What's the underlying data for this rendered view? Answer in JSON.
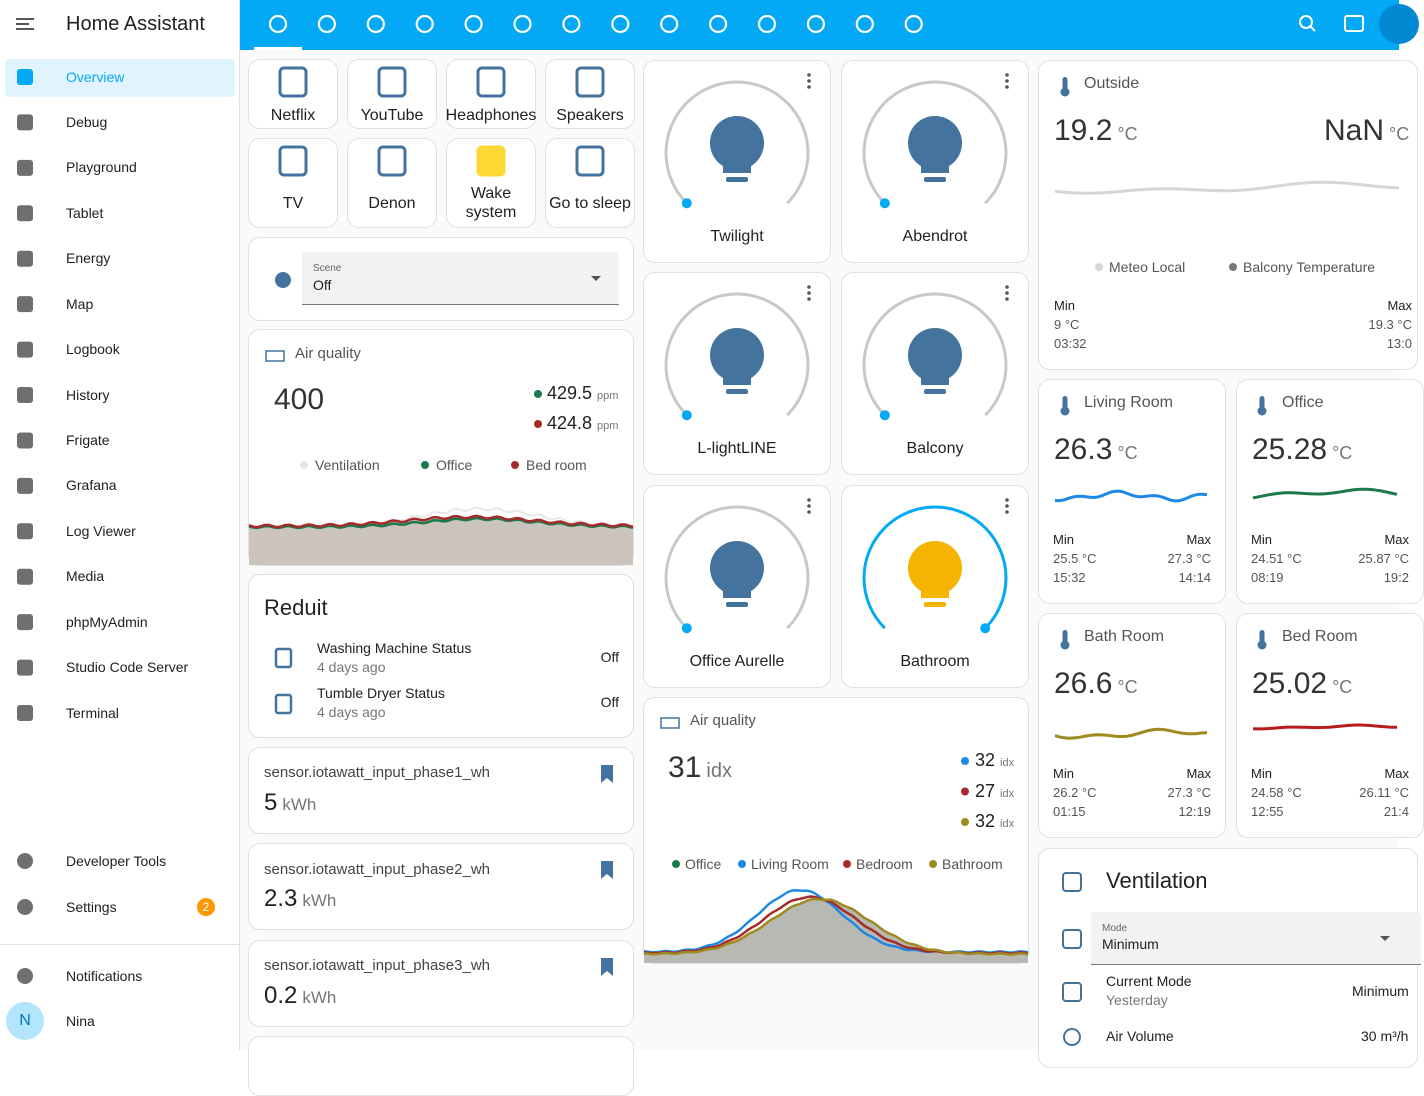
{
  "sidebar": {
    "title": "Home Assistant",
    "items": [
      "Overview",
      "Debug",
      "Playground",
      "Tablet",
      "Energy",
      "Map",
      "Logbook",
      "History",
      "Frigate",
      "Grafana",
      "Log Viewer",
      "Media",
      "phpMyAdmin",
      "Studio Code Server",
      "Terminal"
    ],
    "bottom_items": [
      "Developer Tools",
      "Settings"
    ],
    "settings_badge": "2",
    "notifications": "Notifications",
    "user": {
      "initial": "N",
      "name": "Nina"
    }
  },
  "buttons": [
    "Netflix",
    "YouTube",
    "Headphones",
    "Speakers",
    "TV",
    "Denon",
    "Wake system",
    "Go to sleep"
  ],
  "scene": {
    "label": "Scene",
    "value": "Off"
  },
  "air_quality_1": {
    "title": "Air quality",
    "value": "400",
    "readings": [
      {
        "value": "429.5",
        "unit": "ppm"
      },
      {
        "value": "424.8",
        "unit": "ppm"
      }
    ],
    "legend": [
      "Ventilation",
      "Office",
      "Bed room"
    ]
  },
  "reduit": {
    "title": "Reduit",
    "rows": [
      {
        "name": "Washing Machine Status",
        "time": "4 days ago",
        "state": "Off"
      },
      {
        "name": "Tumble Dryer Status",
        "time": "4 days ago",
        "state": "Off"
      }
    ]
  },
  "sensors": [
    {
      "name": "sensor.iotawatt_input_phase1_wh",
      "value": "5",
      "unit": "kWh"
    },
    {
      "name": "sensor.iotawatt_input_phase2_wh",
      "value": "2.3",
      "unit": "kWh"
    },
    {
      "name": "sensor.iotawatt_input_phase3_wh",
      "value": "0.2",
      "unit": "kWh"
    }
  ],
  "lights": [
    "Twilight",
    "Abendrot",
    "L-lightLINE",
    "Balcony",
    "Office Aurelle",
    "Bathroom"
  ],
  "air_quality_2": {
    "title": "Air quality",
    "value": "31",
    "unit": "idx",
    "readings": [
      {
        "value": "32",
        "unit": "idx"
      },
      {
        "value": "27",
        "unit": "idx"
      },
      {
        "value": "32",
        "unit": "idx"
      }
    ],
    "legend": [
      "Office",
      "Living Room",
      "Bedroom",
      "Bathroom"
    ]
  },
  "outside": {
    "title": "Outside",
    "value": "19.2",
    "unit": "°C",
    "value2": "NaN",
    "unit2": "°C",
    "legend": [
      "Meteo Local",
      "Balcony Temperature"
    ],
    "min": {
      "label": "Min",
      "value": "9 °C",
      "time": "03:32"
    },
    "max": {
      "label": "Max",
      "value": "19.3 °C",
      "time": "13:0"
    }
  },
  "rooms": [
    {
      "title": "Living Room",
      "value": "26.3",
      "unit": "°C",
      "min": {
        "label": "Min",
        "value": "25.5 °C",
        "time": "15:32"
      },
      "max": {
        "label": "Max",
        "value": "27.3 °C",
        "time": "14:14"
      }
    },
    {
      "title": "Office",
      "value": "25.28",
      "unit": "°C",
      "min": {
        "label": "Min",
        "value": "24.51 °C",
        "time": "08:19"
      },
      "max": {
        "label": "Max",
        "value": "25.87 °C",
        "time": "19:2"
      }
    },
    {
      "title": "Bath Room",
      "value": "26.6",
      "unit": "°C",
      "min": {
        "label": "Min",
        "value": "26.2 °C",
        "time": "01:15"
      },
      "max": {
        "label": "Max",
        "value": "27.3 °C",
        "time": "12:19"
      }
    },
    {
      "title": "Bed Room",
      "value": "25.02",
      "unit": "°C",
      "min": {
        "label": "Min",
        "value": "24.58 °C",
        "time": "12:55"
      },
      "max": {
        "label": "Max",
        "value": "26.11 °C",
        "time": "21:4"
      }
    }
  ],
  "ventilation": {
    "title": "Ventilation",
    "mode_label": "Mode",
    "mode": "Minimum",
    "rows": [
      {
        "name": "Current Mode",
        "time": "Yesterday",
        "state": "Minimum"
      },
      {
        "name": "Air Volume",
        "state": "30 m³/h"
      }
    ]
  }
}
